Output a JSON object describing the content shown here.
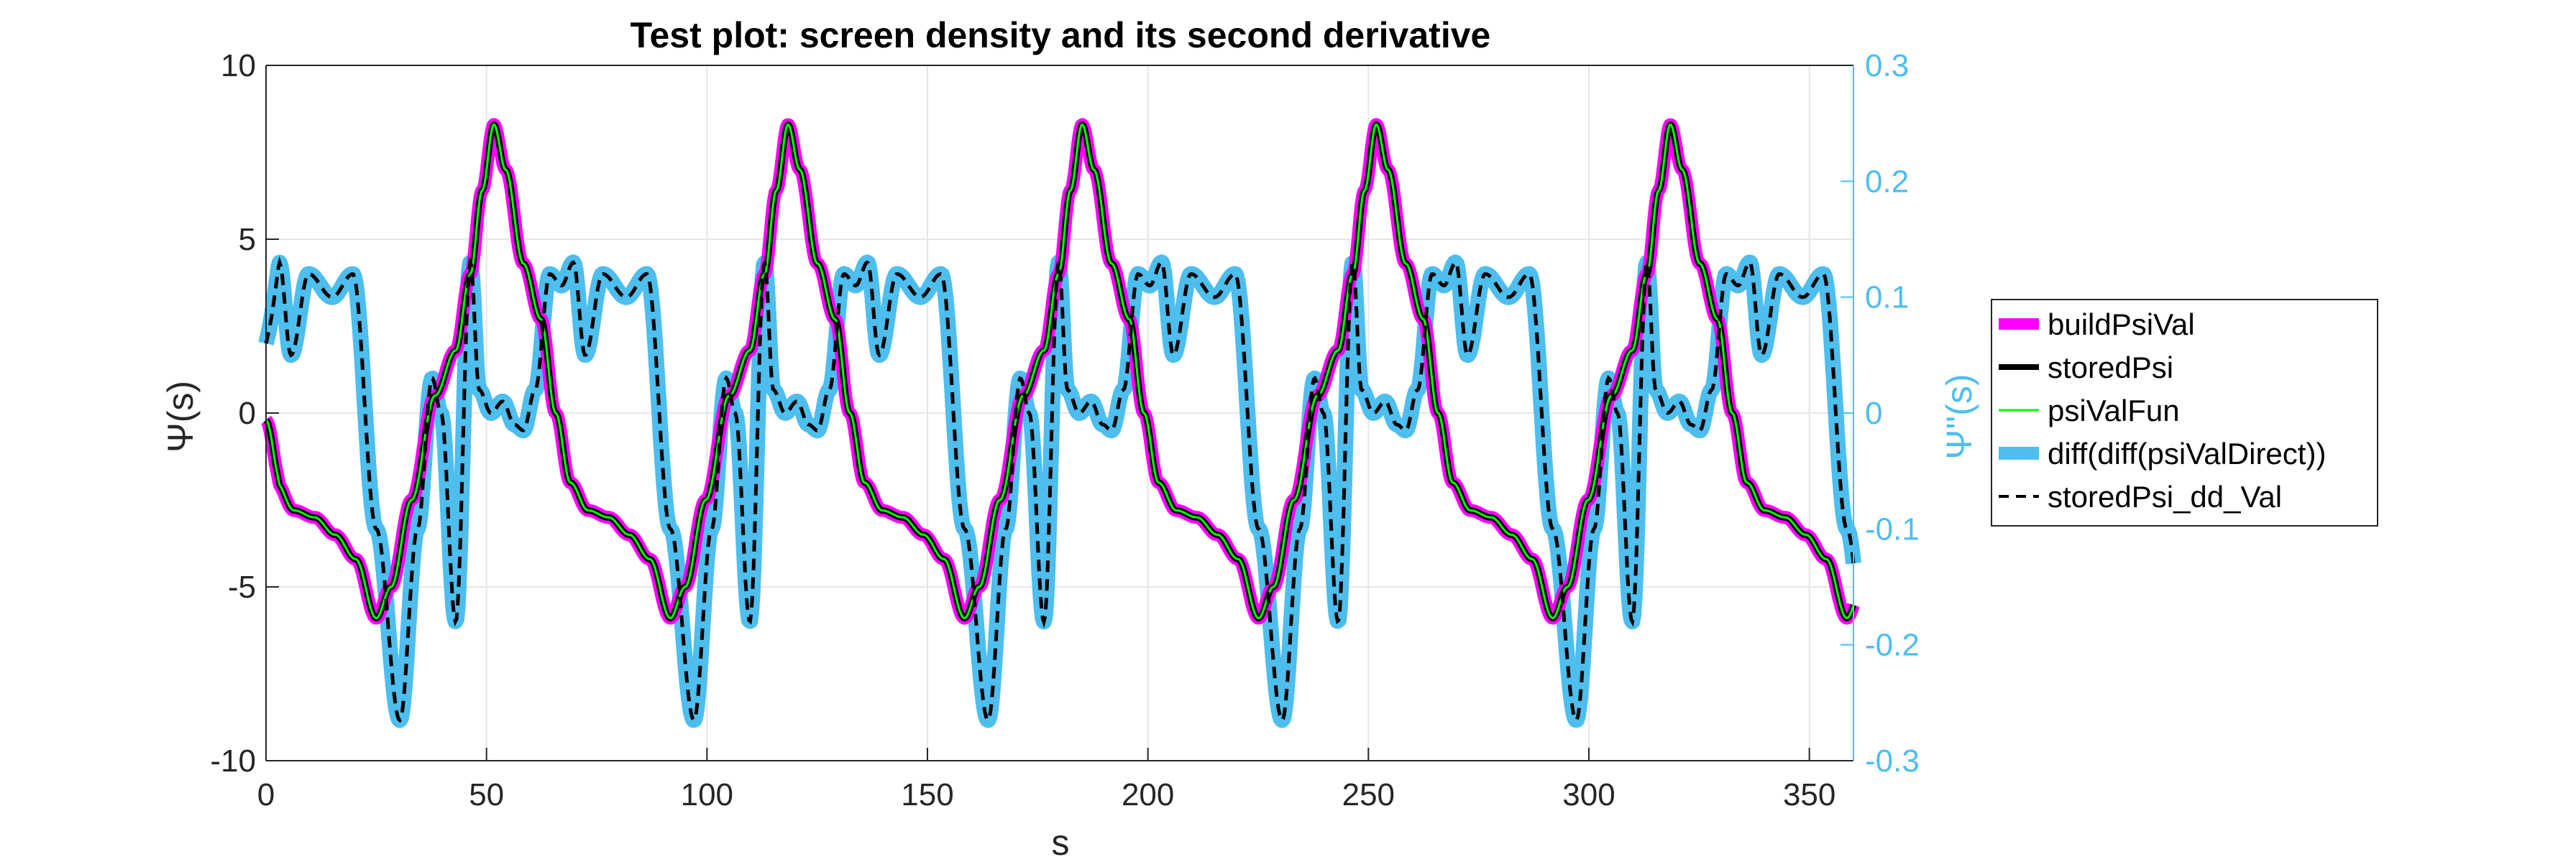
{
  "chart_data": {
    "type": "line",
    "title": "Test plot: screen density and its second derivative",
    "xlabel": "s",
    "ylabel_left": "Ψ(s)",
    "ylabel_right": "Ψ''(s)",
    "xlim": [
      0,
      360
    ],
    "ylim_left": [
      -10,
      10
    ],
    "ylim_right": [
      -0.3,
      0.3
    ],
    "xticks": [
      "0",
      "50",
      "100",
      "150",
      "200",
      "250",
      "300",
      "350"
    ],
    "yticks_left": [
      "10",
      "5",
      "0",
      "-5",
      "-10"
    ],
    "yticks_right": [
      "0.3",
      "0.2",
      "0.1",
      "0",
      "-0.1",
      "-0.2",
      "-0.3"
    ],
    "grid": true,
    "legend_position": "outside-right",
    "colors": {
      "buildPsiVal": "#FF00FF",
      "storedPsi": "#000000",
      "psiValFun": "#00FF00",
      "diff_direct": "#4DBEEE",
      "storedPsi_dd_Val": "#000000",
      "right_axis": "#4DBEEE"
    },
    "period": 66.7,
    "psi_profile": {
      "phase": [
        0.0,
        0.05,
        0.12,
        0.2,
        0.27,
        0.32,
        0.36,
        0.4,
        0.44,
        0.5,
        0.56,
        0.61,
        0.66,
        0.72,
        0.79,
        0.86,
        0.93,
        1.0
      ],
      "value": [
        -5.9,
        -5.0,
        -2.5,
        0.5,
        1.8,
        4.0,
        6.4,
        8.3,
        7.0,
        4.3,
        2.7,
        0.0,
        -2.0,
        -2.8,
        -3.0,
        -3.5,
        -4.2,
        -5.9
      ]
    },
    "psi_dd_profile": {
      "phase": [
        0.0,
        0.04,
        0.1,
        0.18,
        0.25,
        0.33,
        0.41,
        0.47,
        0.52,
        0.55,
        0.6,
        0.65,
        0.68,
        0.72,
        0.76,
        0.8,
        0.83,
        0.87,
        0.92,
        0.96,
        1.0
      ],
      "value": [
        0.13,
        0.05,
        0.12,
        0.1,
        0.12,
        -0.1,
        -0.265,
        -0.1,
        0.03,
        0.0,
        -0.18,
        0.13,
        0.02,
        0.0,
        0.01,
        -0.01,
        -0.015,
        0.02,
        0.12,
        0.11,
        0.13
      ]
    },
    "psi_dd_start": 0.06,
    "series": [
      {
        "name": "buildPsiVal",
        "axis": "left"
      },
      {
        "name": "storedPsi",
        "axis": "left"
      },
      {
        "name": "psiValFun",
        "axis": "left"
      },
      {
        "name": "diff(diff(psiValDirect))",
        "axis": "right"
      },
      {
        "name": "storedPsi_dd_Val",
        "axis": "right"
      }
    ]
  }
}
